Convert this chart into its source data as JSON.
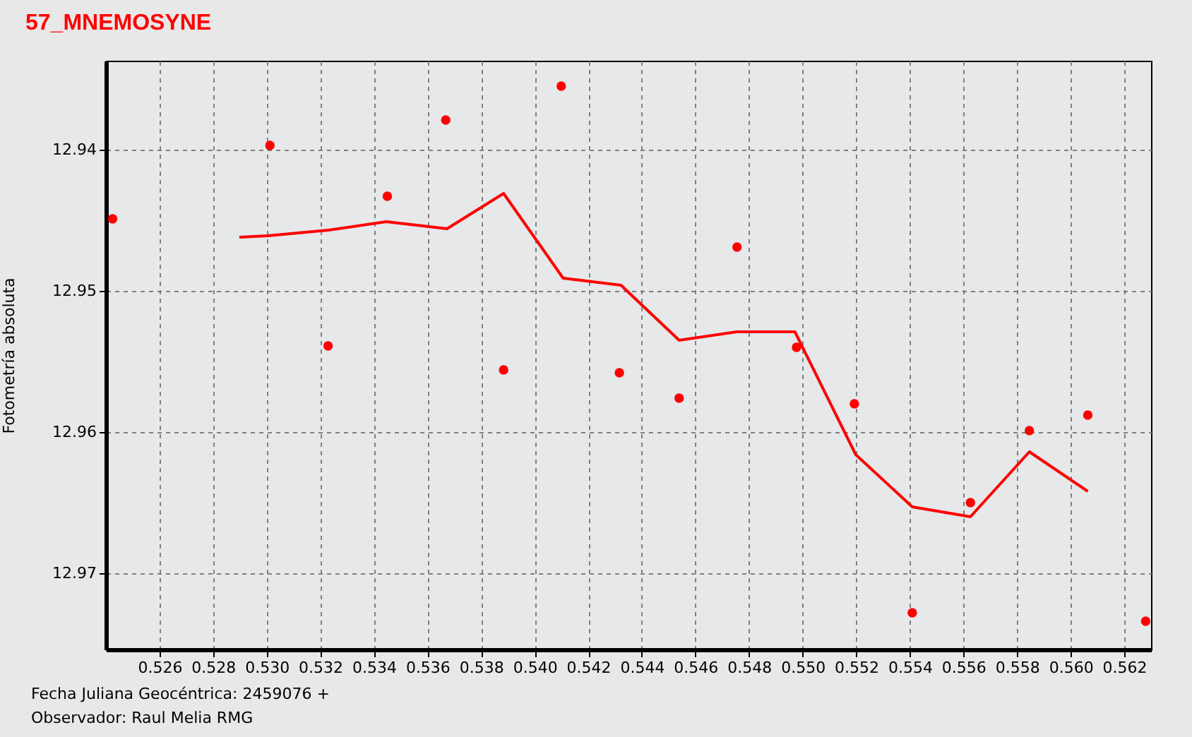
{
  "chart_data": {
    "type": "scatter",
    "title": "57_MNEMOSYNE",
    "ylabel": "Fotometría absoluta",
    "annotations": [
      "Fecha Juliana Geocéntrica: 2459076 +",
      "Observador: Raul Melia RMG"
    ],
    "xlim": [
      0.524,
      0.563
    ],
    "xticks": [
      0.526,
      0.528,
      {
        "value": 0.53,
        "label": "0.530"
      },
      0.532,
      0.534,
      0.536,
      0.538,
      {
        "value": 0.54,
        "label": "0.540"
      },
      0.542,
      0.544,
      0.546,
      0.548,
      {
        "value": 0.55,
        "label": "0.550"
      },
      0.552,
      0.554,
      0.556,
      0.558,
      {
        "value": 0.56,
        "label": "0.560"
      },
      0.562
    ],
    "ylim": [
      12.9754,
      12.9337
    ],
    "yticks": [
      12.94,
      12.95,
      12.96,
      12.97
    ],
    "grid": true,
    "series": [
      {
        "color": "#ff0000",
        "marker": "circle",
        "x": [
          0.52425,
          0.53012,
          0.53229,
          0.5345,
          0.53668,
          0.53884,
          0.54099,
          0.54316,
          0.54539,
          0.54755,
          0.54977,
          0.55193,
          0.55409,
          0.55626,
          0.55846,
          0.56064,
          0.5628
        ],
        "values": [
          12.9449,
          12.9397,
          12.9539,
          12.9433,
          12.9379,
          12.9556,
          12.9355,
          12.9558,
          12.9576,
          12.9469,
          12.954,
          12.958,
          12.9728,
          12.965,
          12.9599,
          12.9588,
          12.9734
        ]
      },
      {
        "type": "line",
        "color": "#ff0000",
        "x": [
          0.52898,
          0.53003,
          0.5323,
          0.53446,
          0.53673,
          0.53884,
          0.54106,
          0.54322,
          0.54539,
          0.54755,
          0.54971,
          0.55198,
          0.55409,
          0.55626,
          0.55846,
          0.56064
        ],
        "values": [
          12.9462,
          12.9461,
          12.9457,
          12.9451,
          12.9456,
          12.9431,
          12.9491,
          12.9496,
          12.9535,
          12.9529,
          12.9529,
          12.9616,
          12.9653,
          12.966,
          12.9614,
          12.9642
        ]
      }
    ]
  }
}
